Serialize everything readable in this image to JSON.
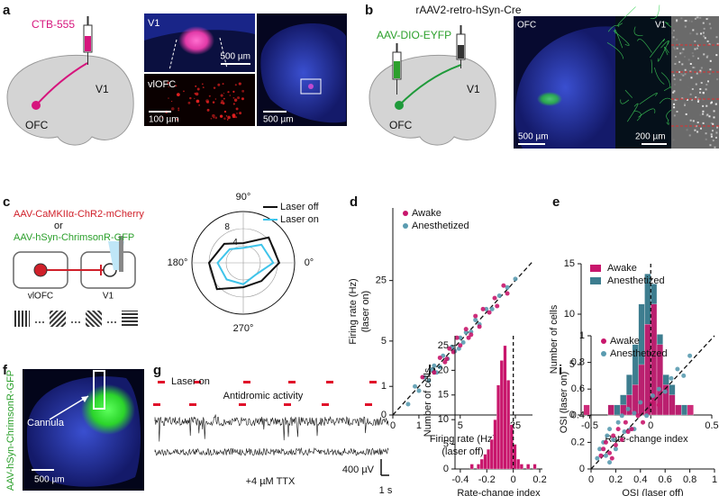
{
  "panels": {
    "a": {
      "label": "a",
      "tracer": "CTB-555",
      "site1": "V1",
      "site2": "OFC",
      "img1_label": "V1",
      "img1_scale": "500 µm",
      "img2_label": "vlOFC",
      "img2_scale": "100 µm",
      "img3_scale": "500 µm"
    },
    "b": {
      "label": "b",
      "virus1": "rAAV2-retro-hSyn-Cre",
      "virus2": "AAV-DIO-EYFP",
      "site1": "V1",
      "site2": "OFC",
      "img1_label": "OFC",
      "img2_label": "V1",
      "img1_scale": "500 µm",
      "img2_scale": "200 µm"
    },
    "c": {
      "label": "c",
      "virus1": "AAV-CaMKIIα-ChR2-mCherry",
      "or": "or",
      "virus2": "AAV-hSyn-ChrimsonR-GFP",
      "site1": "vlOFC",
      "site2": "V1"
    },
    "d": {
      "label": "d"
    },
    "e": {
      "label": "e"
    },
    "f": {
      "label": "f",
      "virus": "AAV-hSyn-ChrimsonR-GFP",
      "cannula": "Cannula",
      "scale": "500 µm"
    },
    "g": {
      "label": "g",
      "legend": "Laser on",
      "trace1": "Antidromic activity",
      "trace2": "+4 µM TTX",
      "scale_v": "400 µV",
      "scale_t": "1 s"
    },
    "h": {
      "label": "h"
    },
    "i": {
      "label": "i"
    }
  },
  "chart_data": [
    {
      "type": "polar",
      "theta": [
        0,
        45,
        90,
        135,
        180,
        225,
        270,
        315
      ],
      "thetaticks": [
        {
          "value": 0,
          "label": "0°"
        },
        {
          "value": 90,
          "label": "90°"
        },
        {
          "value": 180,
          "label": "180°"
        },
        {
          "value": 270,
          "label": "270°"
        }
      ],
      "rlim": [
        0,
        12
      ],
      "rticks": [
        4,
        8
      ],
      "legend": "upper right",
      "series": [
        {
          "name": "Laser off",
          "color": "#111111",
          "values": [
            8.4,
            8.4,
            4.6,
            6.3,
            8,
            8.7,
            5.7,
            6
          ]
        },
        {
          "name": "Laser on",
          "color": "#3fc4ea",
          "values": [
            7,
            6,
            3.5,
            4.5,
            6,
            5.5,
            5,
            4
          ]
        }
      ]
    },
    {
      "type": "scatter",
      "xscale": "log1p",
      "yscale": "log1p",
      "xlim": [
        0,
        40
      ],
      "ylim": [
        0,
        150
      ],
      "xticks": [
        0,
        1,
        5,
        25
      ],
      "yticks": [
        0,
        1,
        5,
        25
      ],
      "diagonal": true,
      "legend": "upper left",
      "xlabel": [
        "Firing rate (Hz)",
        "(laser off)"
      ],
      "ylabel": [
        "Firing rate (Hz)",
        "(laser on)"
      ],
      "series": [
        {
          "name": "Awake",
          "color": "#c8166c",
          "x": [
            1.2,
            2,
            2.5,
            3,
            3.5,
            4,
            4.5,
            5,
            6,
            7,
            8,
            9,
            10,
            12,
            14,
            15,
            18,
            20,
            3.2,
            6.5
          ],
          "y": [
            1.5,
            1.8,
            3,
            2.6,
            4,
            3.6,
            5.5,
            4.4,
            7,
            6,
            10,
            7.5,
            12,
            11,
            16,
            13,
            22,
            18,
            2.9,
            5.5
          ]
        },
        {
          "name": "Anesthetized",
          "color": "#5a9bb0",
          "x": [
            0.5,
            0.8,
            1,
            1.3,
            1.6,
            2,
            2.2,
            2.8,
            3.3,
            3.8,
            4.2,
            5,
            5.5,
            6,
            7,
            8,
            9,
            11,
            13,
            16,
            20,
            25,
            1.8,
            2.5,
            4.8
          ],
          "y": [
            0.3,
            1,
            0.8,
            1.5,
            1.3,
            2.3,
            1.8,
            3.2,
            2.9,
            4.2,
            3.7,
            5.5,
            4.8,
            6.4,
            6.5,
            9,
            8,
            12,
            12,
            17,
            21,
            26,
            2,
            2.2,
            4
          ]
        }
      ]
    },
    {
      "type": "histogram",
      "xlim": [
        -0.57,
        0.5
      ],
      "ylim": [
        0,
        15
      ],
      "xticks": [
        -0.5,
        0,
        0.5
      ],
      "yticks": [
        0,
        5,
        10,
        15
      ],
      "vline": 0,
      "legend": "upper left",
      "xlabel": [
        "Rate-change index"
      ],
      "ylabel": [
        "Number of cells"
      ],
      "bins": [
        -0.55,
        -0.5,
        -0.45,
        -0.4,
        -0.35,
        -0.3,
        -0.25,
        -0.2,
        -0.15,
        -0.1,
        -0.05,
        0,
        0.05,
        0.1,
        0.15,
        0.2,
        0.25,
        0.3,
        0.35
      ],
      "series": [
        {
          "name": "Awake",
          "color": "#c8166c",
          "values": [
            1,
            0,
            0,
            0,
            1,
            0,
            1,
            2,
            3,
            5,
            9,
            11,
            7,
            3,
            2,
            1,
            0,
            1
          ]
        },
        {
          "name": "Anesthetized",
          "color": "#3d7d8f",
          "values": [
            0,
            0,
            0,
            0,
            1,
            1,
            2,
            4,
            7,
            11,
            14,
            13,
            8,
            4,
            3,
            1,
            1,
            0
          ]
        }
      ]
    },
    {
      "type": "histogram",
      "xlim": [
        -0.44,
        0.22
      ],
      "ylim": [
        0,
        27
      ],
      "xticks": [
        -0.4,
        -0.2,
        0,
        0.2
      ],
      "yticks": [
        0,
        5,
        10,
        15,
        20,
        25
      ],
      "vline": 0,
      "xlabel": [
        "Rate-change index"
      ],
      "ylabel": [
        "Number of cells"
      ],
      "bins": [
        -0.325,
        -0.3,
        -0.275,
        -0.25,
        -0.225,
        -0.2,
        -0.175,
        -0.15,
        -0.125,
        -0.1,
        -0.075,
        -0.05,
        -0.025,
        0,
        0.025,
        0.05,
        0.075,
        0.1,
        0.125,
        0.15,
        0.175
      ],
      "series": [
        {
          "color": "#c8166c",
          "values": [
            1,
            0,
            1,
            2,
            3,
            4,
            6,
            10,
            17,
            22,
            25,
            18,
            9,
            5,
            2,
            1,
            0,
            1,
            0,
            1
          ]
        }
      ]
    },
    {
      "type": "scatter",
      "xlim": [
        0,
        1
      ],
      "ylim": [
        0,
        1
      ],
      "xticks": [
        0,
        0.2,
        0.4,
        0.6,
        0.8,
        1
      ],
      "yticks": [
        0,
        0.2,
        0.4,
        0.6,
        0.8,
        1
      ],
      "diagonal": true,
      "legend": "upper left",
      "xlabel": [
        "OSI (laser off)"
      ],
      "ylabel": [
        "OSI (laser on)"
      ],
      "series": [
        {
          "name": "Awake",
          "color": "#c8166c",
          "x": [
            0.08,
            0.12,
            0.15,
            0.18,
            0.2,
            0.22,
            0.25,
            0.28,
            0.3,
            0.33,
            0.38,
            0.42,
            0.5,
            0.55,
            0.1,
            0.17
          ],
          "y": [
            0.1,
            0.2,
            0.12,
            0.25,
            0.18,
            0.3,
            0.22,
            0.35,
            0.28,
            0.3,
            0.4,
            0.35,
            0.5,
            0.48,
            0.15,
            0.08
          ]
        },
        {
          "name": "Anesthetized",
          "color": "#5a9bb0",
          "x": [
            0.05,
            0.07,
            0.1,
            0.12,
            0.13,
            0.15,
            0.18,
            0.2,
            0.22,
            0.25,
            0.27,
            0.3,
            0.32,
            0.35,
            0.4,
            0.45,
            0.5,
            0.55,
            0.6,
            0.65,
            0.7,
            0.75,
            0.8,
            0.35,
            0.15
          ],
          "y": [
            0.08,
            0.15,
            0.2,
            0.1,
            0.25,
            0.3,
            0.22,
            0.15,
            0.35,
            0.4,
            0.28,
            0.45,
            0.3,
            0.42,
            0.5,
            0.4,
            0.55,
            0.6,
            0.58,
            0.68,
            0.75,
            0.7,
            0.85,
            0.3,
            0.05
          ]
        }
      ]
    }
  ]
}
